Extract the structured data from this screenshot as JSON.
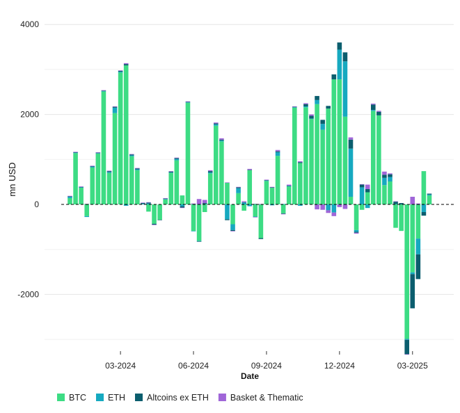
{
  "chart_data": {
    "type": "bar",
    "stacked": true,
    "title": "",
    "xlabel": "Date",
    "ylabel": "mn USD",
    "ylim": [
      -3000,
      4300
    ],
    "yticks": [
      4000,
      2000,
      0,
      -2000
    ],
    "xticks": [
      {
        "label": "03-2024",
        "index": 9
      },
      {
        "label": "06-2024",
        "index": 22
      },
      {
        "label": "09-2024",
        "index": 35
      },
      {
        "label": "12-2024",
        "index": 48
      },
      {
        "label": "03-2025",
        "index": 61
      }
    ],
    "legend_position": "bottom-left",
    "colors": {
      "BTC": "#3ddc84",
      "ETH": "#16a9c0",
      "Altcoins ex ETH": "#0b5e6e",
      "Basket & Thematic": "#a066d8"
    },
    "zero_line": "dashed",
    "grid": true,
    "series": [
      {
        "name": "BTC",
        "values": [
          140,
          1140,
          370,
          -260,
          820,
          1130,
          2510,
          700,
          2030,
          2930,
          3090,
          1070,
          760,
          0,
          -160,
          -430,
          -340,
          110,
          700,
          980,
          200,
          2260,
          -590,
          -810,
          -170,
          690,
          1750,
          1400,
          480,
          -440,
          250,
          -140,
          760,
          -270,
          -750,
          520,
          370,
          1080,
          -200,
          400,
          2150,
          920,
          2160,
          1900,
          2230,
          1660,
          2130,
          2780,
          2780,
          1950,
          170,
          -570,
          -120,
          270,
          2080,
          1980,
          430,
          510,
          -520,
          -590,
          -2990,
          -1510,
          -760,
          740,
          200
        ]
      },
      {
        "name": "ETH",
        "values": [
          30,
          10,
          10,
          -20,
          20,
          10,
          10,
          20,
          120,
          20,
          -30,
          20,
          20,
          10,
          20,
          0,
          0,
          10,
          10,
          30,
          -40,
          10,
          -10,
          -10,
          10,
          20,
          30,
          20,
          -330,
          -130,
          110,
          40,
          -40,
          -10,
          0,
          10,
          -20,
          80,
          10,
          10,
          10,
          -30,
          20,
          10,
          90,
          130,
          -130,
          -180,
          660,
          1230,
          1070,
          -40,
          380,
          -80,
          20,
          0,
          160,
          100,
          10,
          0,
          -20,
          -40,
          -350,
          -170,
          20
        ]
      },
      {
        "name": "Altcoins ex ETH",
        "values": [
          10,
          10,
          10,
          10,
          10,
          10,
          10,
          20,
          20,
          20,
          30,
          20,
          20,
          20,
          20,
          -20,
          -10,
          10,
          20,
          20,
          -30,
          10,
          10,
          -10,
          20,
          30,
          20,
          20,
          -20,
          -20,
          20,
          10,
          10,
          10,
          -20,
          10,
          10,
          20,
          -10,
          10,
          10,
          20,
          50,
          60,
          90,
          90,
          60,
          110,
          160,
          200,
          200,
          -20,
          60,
          70,
          120,
          80,
          70,
          60,
          50,
          30,
          -320,
          -760,
          -550,
          -80,
          20
        ]
      },
      {
        "name": "Basket & Thematic",
        "values": [
          10,
          10,
          10,
          0,
          10,
          10,
          10,
          10,
          10,
          10,
          20,
          10,
          10,
          10,
          10,
          -10,
          0,
          10,
          10,
          10,
          -10,
          10,
          10,
          120,
          70,
          20,
          20,
          30,
          10,
          -10,
          10,
          20,
          20,
          -10,
          10,
          10,
          10,
          30,
          -10,
          20,
          10,
          20,
          20,
          30,
          -110,
          -120,
          -60,
          -80,
          -60,
          -100,
          50,
          -20,
          10,
          100,
          20,
          20,
          70,
          20,
          10,
          0,
          -10,
          170,
          20,
          0,
          0
        ]
      }
    ]
  }
}
